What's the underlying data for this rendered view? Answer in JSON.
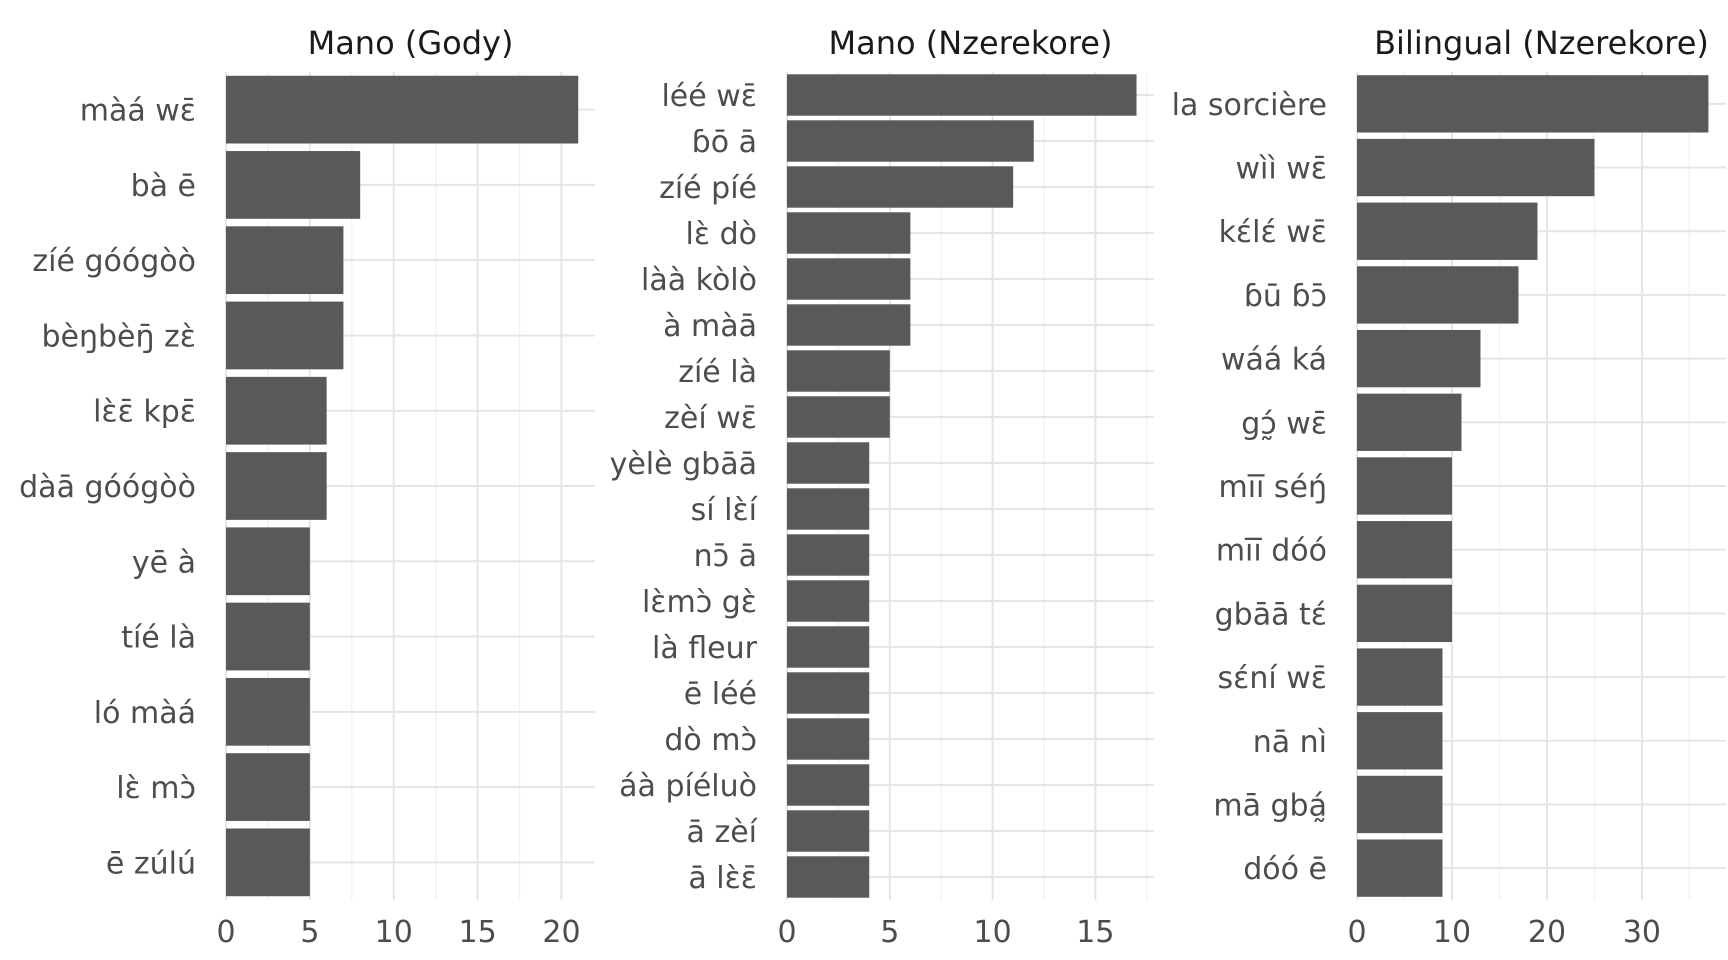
{
  "colors": {
    "bar": "#595959",
    "grid_major": "#e5e5e5",
    "grid_minor": "#f2f2f2",
    "text": "#4d4d4d",
    "title": "#1a1a1a",
    "background": "#ffffff"
  },
  "chart_data": [
    {
      "type": "bar",
      "orientation": "horizontal",
      "title": "Mano (Gody)",
      "xlabel": "",
      "ylabel": "",
      "xlim": [
        0,
        22
      ],
      "xticks": [
        0,
        5,
        10,
        15,
        20
      ],
      "grid": true,
      "categories": [
        "màá wɛ̄",
        "bà ē",
        "zíé góógòò",
        "bèŋbèŋ̄ zɛ̀",
        "lɛ̀ɛ̄ kpɛ̄",
        "dàā góógòò",
        "yē à",
        "tíé là",
        "ló màá",
        "lɛ̀ mɔ̀",
        "ē zúlú"
      ],
      "values": [
        21,
        8,
        7,
        7,
        6,
        6,
        5,
        5,
        5,
        5,
        5
      ]
    },
    {
      "type": "bar",
      "orientation": "horizontal",
      "title": "Mano (Nzerekore)",
      "xlabel": "",
      "ylabel": "",
      "xlim": [
        0,
        17.85
      ],
      "xticks": [
        0,
        5,
        10,
        15
      ],
      "grid": true,
      "categories": [
        "léé wɛ̄",
        "ɓō ā",
        "zíé píé",
        "lɛ̀ dò",
        "làà kòlò",
        "à màā",
        "zíé là",
        "zèí wɛ̄",
        "yèlè gbāā",
        "sí lɛ̀í",
        "nɔ̄ ā",
        "lɛ̀mɔ̀ gɛ̀",
        "là fleur",
        "ē léé",
        "dò mɔ̀",
        "áà píéluò",
        "ā zèí",
        "ā lɛ̀ɛ̄"
      ],
      "values": [
        17,
        12,
        11,
        6,
        6,
        6,
        5,
        5,
        4,
        4,
        4,
        4,
        4,
        4,
        4,
        4,
        4,
        4
      ]
    },
    {
      "type": "bar",
      "orientation": "horizontal",
      "title": "Bilingual (Nzerekore)",
      "xlabel": "",
      "ylabel": "",
      "xlim": [
        0,
        38.85
      ],
      "xticks": [
        0,
        10,
        20,
        30
      ],
      "grid": true,
      "categories": [
        "la sorcière",
        "wìì wɛ̄",
        "kɛ́lɛ́ wɛ̄",
        "ɓū ɓɔ̄",
        "wáá ká",
        "gɔ̰́ wɛ̄",
        "mīī séŋ́",
        "mīī dóó",
        "gbāā tɛ́",
        "sɛ́ní wɛ̄",
        "nā nì",
        "mā gbá̰",
        "dóó ē"
      ],
      "values": [
        37,
        25,
        19,
        17,
        13,
        11,
        10,
        10,
        10,
        9,
        9,
        9,
        9
      ]
    }
  ]
}
